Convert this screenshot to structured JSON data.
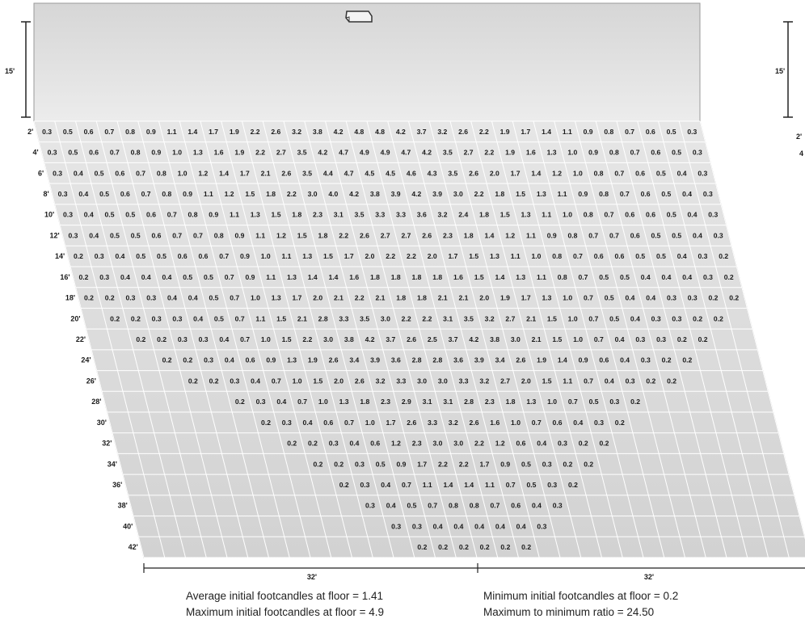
{
  "mounting_height_label": "15'",
  "right_mounting_height_label": "15'",
  "right_partial_labels": [
    "2'",
    "4"
  ],
  "width_labels": [
    "32'",
    "32'"
  ],
  "rows": [
    {
      "label": "2'",
      "values": [
        "0.3",
        "0.5",
        "0.6",
        "0.7",
        "0.8",
        "0.9",
        "1.1",
        "1.4",
        "1.7",
        "1.9",
        "2.2",
        "2.6",
        "3.2",
        "3.8",
        "4.2",
        "4.8",
        "4.8",
        "4.2",
        "3.7",
        "3.2",
        "2.6",
        "2.2",
        "1.9",
        "1.7",
        "1.4",
        "1.1",
        "0.9",
        "0.8",
        "0.7",
        "0.6",
        "0.5",
        "0.3"
      ]
    },
    {
      "label": "4'",
      "values": [
        "0.3",
        "0.5",
        "0.6",
        "0.7",
        "0.8",
        "0.9",
        "1.0",
        "1.3",
        "1.6",
        "1.9",
        "2.2",
        "2.7",
        "3.5",
        "4.2",
        "4.7",
        "4.9",
        "4.9",
        "4.7",
        "4.2",
        "3.5",
        "2.7",
        "2.2",
        "1.9",
        "1.6",
        "1.3",
        "1.0",
        "0.9",
        "0.8",
        "0.7",
        "0.6",
        "0.5",
        "0.3"
      ]
    },
    {
      "label": "6'",
      "values": [
        "0.3",
        "0.4",
        "0.5",
        "0.6",
        "0.7",
        "0.8",
        "1.0",
        "1.2",
        "1.4",
        "1.7",
        "2.1",
        "2.6",
        "3.5",
        "4.4",
        "4.7",
        "4.5",
        "4.5",
        "4.6",
        "4.3",
        "3.5",
        "2.6",
        "2.0",
        "1.7",
        "1.4",
        "1.2",
        "1.0",
        "0.8",
        "0.7",
        "0.6",
        "0.5",
        "0.4",
        "0.3"
      ]
    },
    {
      "label": "8'",
      "values": [
        "0.3",
        "0.4",
        "0.5",
        "0.6",
        "0.7",
        "0.8",
        "0.9",
        "1.1",
        "1.2",
        "1.5",
        "1.8",
        "2.2",
        "3.0",
        "4.0",
        "4.2",
        "3.8",
        "3.9",
        "4.2",
        "3.9",
        "3.0",
        "2.2",
        "1.8",
        "1.5",
        "1.3",
        "1.1",
        "0.9",
        "0.8",
        "0.7",
        "0.6",
        "0.5",
        "0.4",
        "0.3"
      ]
    },
    {
      "label": "10'",
      "values": [
        "0.3",
        "0.4",
        "0.5",
        "0.5",
        "0.6",
        "0.7",
        "0.8",
        "0.9",
        "1.1",
        "1.3",
        "1.5",
        "1.8",
        "2.3",
        "3.1",
        "3.5",
        "3.3",
        "3.3",
        "3.6",
        "3.2",
        "2.4",
        "1.8",
        "1.5",
        "1.3",
        "1.1",
        "1.0",
        "0.8",
        "0.7",
        "0.6",
        "0.6",
        "0.5",
        "0.4",
        "0.3"
      ]
    },
    {
      "label": "12'",
      "values": [
        "0.3",
        "0.4",
        "0.5",
        "0.5",
        "0.6",
        "0.7",
        "0.7",
        "0.8",
        "0.9",
        "1.1",
        "1.2",
        "1.5",
        "1.8",
        "2.2",
        "2.6",
        "2.7",
        "2.7",
        "2.6",
        "2.3",
        "1.8",
        "1.4",
        "1.2",
        "1.1",
        "0.9",
        "0.8",
        "0.7",
        "0.7",
        "0.6",
        "0.5",
        "0.5",
        "0.4",
        "0.3"
      ]
    },
    {
      "label": "14'",
      "values": [
        "0.2",
        "0.3",
        "0.4",
        "0.5",
        "0.5",
        "0.6",
        "0.6",
        "0.7",
        "0.9",
        "1.0",
        "1.1",
        "1.3",
        "1.5",
        "1.7",
        "2.0",
        "2.2",
        "2.2",
        "2.0",
        "1.7",
        "1.5",
        "1.3",
        "1.1",
        "1.0",
        "0.8",
        "0.7",
        "0.6",
        "0.6",
        "0.5",
        "0.5",
        "0.4",
        "0.3",
        "0.2"
      ]
    },
    {
      "label": "16'",
      "values": [
        "0.2",
        "0.3",
        "0.4",
        "0.4",
        "0.4",
        "0.5",
        "0.5",
        "0.7",
        "0.9",
        "1.1",
        "1.3",
        "1.4",
        "1.4",
        "1.6",
        "1.8",
        "1.8",
        "1.8",
        "1.8",
        "1.6",
        "1.5",
        "1.4",
        "1.3",
        "1.1",
        "0.8",
        "0.7",
        "0.5",
        "0.5",
        "0.4",
        "0.4",
        "0.4",
        "0.3",
        "0.2"
      ]
    },
    {
      "label": "18'",
      "values": [
        "0.2",
        "0.2",
        "0.3",
        "0.3",
        "0.4",
        "0.4",
        "0.5",
        "0.7",
        "1.0",
        "1.3",
        "1.7",
        "2.0",
        "2.1",
        "2.2",
        "2.1",
        "1.8",
        "1.8",
        "2.1",
        "2.1",
        "2.0",
        "1.9",
        "1.7",
        "1.3",
        "1.0",
        "0.7",
        "0.5",
        "0.4",
        "0.4",
        "0.3",
        "0.3",
        "0.2",
        "0.2"
      ]
    },
    {
      "label": "20'",
      "values": [
        "0.2",
        "0.2",
        "0.3",
        "0.3",
        "0.4",
        "0.5",
        "0.7",
        "1.1",
        "1.5",
        "2.1",
        "2.8",
        "3.3",
        "3.5",
        "3.0",
        "2.2",
        "2.2",
        "3.1",
        "3.5",
        "3.2",
        "2.7",
        "2.1",
        "1.5",
        "1.0",
        "0.7",
        "0.5",
        "0.4",
        "0.3",
        "0.3",
        "0.2",
        "0.2"
      ]
    },
    {
      "label": "22'",
      "values": [
        "0.2",
        "0.2",
        "0.3",
        "0.3",
        "0.4",
        "0.7",
        "1.0",
        "1.5",
        "2.2",
        "3.0",
        "3.8",
        "4.2",
        "3.7",
        "2.6",
        "2.5",
        "3.7",
        "4.2",
        "3.8",
        "3.0",
        "2.1",
        "1.5",
        "1.0",
        "0.7",
        "0.4",
        "0.3",
        "0.3",
        "0.2",
        "0.2"
      ]
    },
    {
      "label": "24'",
      "values": [
        "0.2",
        "0.2",
        "0.3",
        "0.4",
        "0.6",
        "0.9",
        "1.3",
        "1.9",
        "2.6",
        "3.4",
        "3.9",
        "3.6",
        "2.8",
        "2.8",
        "3.6",
        "3.9",
        "3.4",
        "2.6",
        "1.9",
        "1.4",
        "0.9",
        "0.6",
        "0.4",
        "0.3",
        "0.2",
        "0.2"
      ]
    },
    {
      "label": "26'",
      "values": [
        "0.2",
        "0.2",
        "0.3",
        "0.4",
        "0.7",
        "1.0",
        "1.5",
        "2.0",
        "2.6",
        "3.2",
        "3.3",
        "3.0",
        "3.0",
        "3.3",
        "3.2",
        "2.7",
        "2.0",
        "1.5",
        "1.1",
        "0.7",
        "0.4",
        "0.3",
        "0.2",
        "0.2"
      ]
    },
    {
      "label": "28'",
      "values": [
        "0.2",
        "0.3",
        "0.4",
        "0.7",
        "1.0",
        "1.3",
        "1.8",
        "2.3",
        "2.9",
        "3.1",
        "3.1",
        "2.8",
        "2.3",
        "1.8",
        "1.3",
        "1.0",
        "0.7",
        "0.5",
        "0.3",
        "0.2"
      ]
    },
    {
      "label": "30'",
      "values": [
        "0.2",
        "0.3",
        "0.4",
        "0.6",
        "0.7",
        "1.0",
        "1.7",
        "2.6",
        "3.3",
        "3.2",
        "2.6",
        "1.6",
        "1.0",
        "0.7",
        "0.6",
        "0.4",
        "0.3",
        "0.2"
      ]
    },
    {
      "label": "32'",
      "values": [
        "0.2",
        "0.2",
        "0.3",
        "0.4",
        "0.6",
        "1.2",
        "2.3",
        "3.0",
        "3.0",
        "2.2",
        "1.2",
        "0.6",
        "0.4",
        "0.3",
        "0.2",
        "0.2"
      ]
    },
    {
      "label": "34'",
      "values": [
        "0.2",
        "0.2",
        "0.3",
        "0.5",
        "0.9",
        "1.7",
        "2.2",
        "2.2",
        "1.7",
        "0.9",
        "0.5",
        "0.3",
        "0.2",
        "0.2"
      ]
    },
    {
      "label": "36'",
      "values": [
        "0.2",
        "0.3",
        "0.4",
        "0.7",
        "1.1",
        "1.4",
        "1.4",
        "1.1",
        "0.7",
        "0.5",
        "0.3",
        "0.2"
      ]
    },
    {
      "label": "38'",
      "values": [
        "0.3",
        "0.4",
        "0.5",
        "0.7",
        "0.8",
        "0.8",
        "0.7",
        "0.6",
        "0.4",
        "0.3"
      ]
    },
    {
      "label": "40'",
      "values": [
        "0.3",
        "0.3",
        "0.4",
        "0.4",
        "0.4",
        "0.4",
        "0.4",
        "0.3"
      ]
    },
    {
      "label": "42'",
      "values": [
        "0.2",
        "0.2",
        "0.2",
        "0.2",
        "0.2",
        "0.2"
      ]
    }
  ],
  "stats": {
    "average": "Average initial footcandles at floor = 1.41",
    "maximum": "Maximum initial footcandles at floor = 4.9",
    "minimum": "Minimum initial footcandles at floor = 0.2",
    "ratio": "Maximum to minimum ratio = 24.50"
  }
}
